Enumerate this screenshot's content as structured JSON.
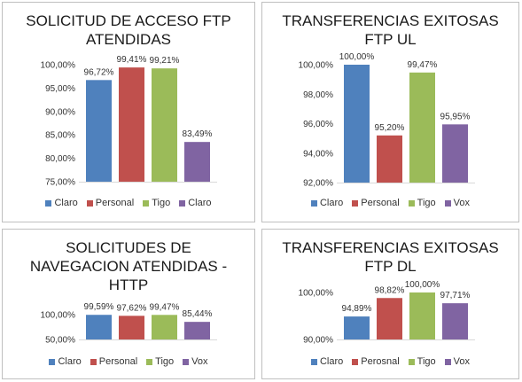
{
  "colors": {
    "blue": "#4f81bd",
    "red": "#c0504d",
    "green": "#9bbb59",
    "purple": "#8064a2"
  },
  "chart_data": [
    {
      "type": "bar",
      "title_lines": [
        "SOLICITUD DE ACCESO FTP",
        "ATENDIDAS"
      ],
      "categories": [
        "Claro",
        "Personal",
        "Tigo",
        "Claro"
      ],
      "values": [
        96.72,
        99.41,
        99.21,
        83.49
      ],
      "value_labels": [
        "96,72%",
        "99,41%",
        "99,21%",
        "83,49%"
      ],
      "ylim": [
        75,
        100
      ],
      "yticks": [
        75,
        80,
        85,
        90,
        95,
        100
      ],
      "ytick_labels": [
        "75,00%",
        "80,00%",
        "85,00%",
        "90,00%",
        "95,00%",
        "100,00%"
      ],
      "grid": false,
      "legend_position": "bottom",
      "legend": [
        "Claro",
        "Personal",
        "Tigo",
        "Claro"
      ]
    },
    {
      "type": "bar",
      "title_lines": [
        "TRANSFERENCIAS EXITOSAS",
        "FTP UL"
      ],
      "categories": [
        "Claro",
        "Personal",
        "Tigo",
        "Vox"
      ],
      "values": [
        100.0,
        95.2,
        99.47,
        95.95
      ],
      "value_labels": [
        "100,00%",
        "95,20%",
        "99,47%",
        "95,95%"
      ],
      "ylim": [
        92,
        100
      ],
      "yticks": [
        92,
        94,
        96,
        98,
        100
      ],
      "ytick_labels": [
        "92,00%",
        "94,00%",
        "96,00%",
        "98,00%",
        "100,00%"
      ],
      "grid": false,
      "legend_position": "bottom",
      "legend": [
        "Claro",
        "Personal",
        "Tigo",
        "Vox"
      ]
    },
    {
      "type": "bar",
      "title_lines": [
        "SOLICITUDES DE",
        "NAVEGACION ATENDIDAS -",
        "HTTP"
      ],
      "categories": [
        "Claro",
        "Personal",
        "Tigo",
        "Vox"
      ],
      "values": [
        99.59,
        97.62,
        99.47,
        85.44
      ],
      "value_labels": [
        "99,59%",
        "97,62%",
        "99,47%",
        "85,44%"
      ],
      "ylim": [
        50,
        100
      ],
      "yticks": [
        50,
        100
      ],
      "ytick_labels": [
        "50,00%",
        "100,00%"
      ],
      "grid": false,
      "legend_position": "bottom",
      "legend": [
        "Claro",
        "Personal",
        "Tigo",
        "Vox"
      ]
    },
    {
      "type": "bar",
      "title_lines": [
        "TRANSFERENCIAS EXITOSAS",
        "FTP DL"
      ],
      "categories": [
        "Claro",
        "Perosnal",
        "Tigo",
        "Vox"
      ],
      "values": [
        94.89,
        98.82,
        100.0,
        97.71
      ],
      "value_labels": [
        "94,89%",
        "98,82%",
        "100,00%",
        "97,71%"
      ],
      "ylim": [
        90,
        100
      ],
      "yticks": [
        90,
        100
      ],
      "ytick_labels": [
        "90,00%",
        "100,00%"
      ],
      "grid": false,
      "legend_position": "bottom",
      "legend": [
        "Claro",
        "Perosnal",
        "Tigo",
        "Vox"
      ]
    }
  ]
}
